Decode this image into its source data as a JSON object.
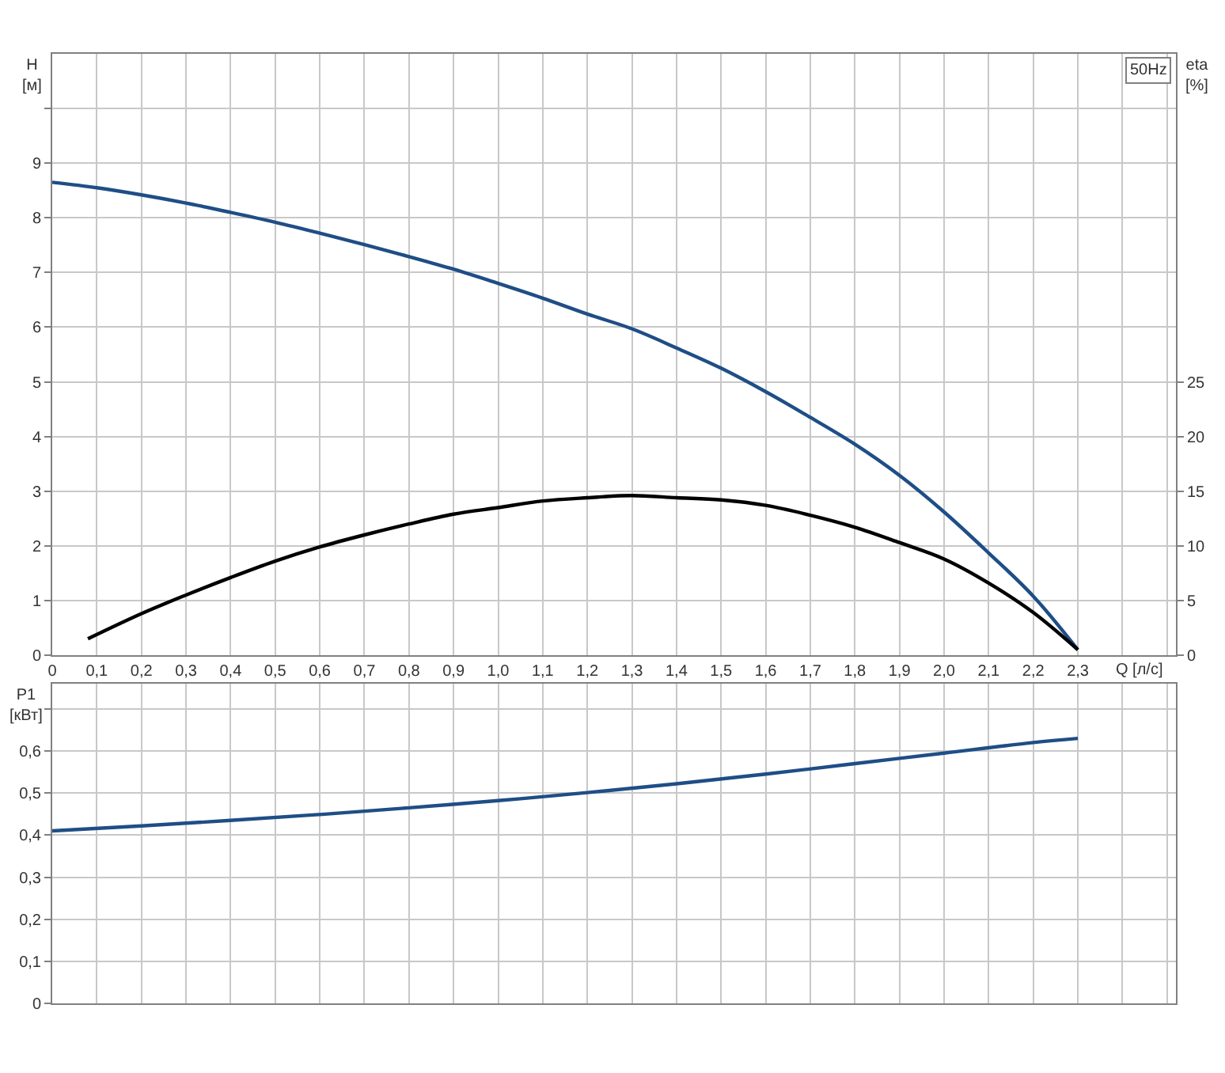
{
  "chart_data": [
    {
      "type": "line",
      "title": "50Hz",
      "xlabel": "Q [л/с]",
      "ylabel": "H\n[м]",
      "y2label": "eta\n[%]",
      "x": [
        0,
        0.1,
        0.2,
        0.3,
        0.4,
        0.5,
        0.6,
        0.7,
        0.8,
        0.9,
        1.0,
        1.1,
        1.2,
        1.3,
        1.4,
        1.5,
        1.6,
        1.7,
        1.8,
        1.9,
        2.0,
        2.1,
        2.2,
        2.3
      ],
      "series": [
        {
          "color": "#1f4e86",
          "values": [
            8.65,
            8.55,
            8.42,
            8.27,
            8.1,
            7.92,
            7.72,
            7.51,
            7.29,
            7.06,
            6.8,
            6.53,
            6.24,
            5.97,
            5.62,
            5.25,
            4.82,
            4.35,
            3.86,
            3.29,
            2.62,
            1.87,
            1.08,
            0.1
          ]
        },
        {
          "color": "#000000",
          "axis": "y2",
          "x": [
            0.08,
            0.2,
            0.3,
            0.4,
            0.5,
            0.6,
            0.7,
            0.8,
            0.9,
            1.0,
            1.1,
            1.2,
            1.3,
            1.4,
            1.5,
            1.6,
            1.7,
            1.8,
            1.9,
            2.0,
            2.1,
            2.2,
            2.3
          ],
          "values": [
            1.5,
            3.8,
            5.5,
            7.1,
            8.6,
            9.9,
            11,
            12,
            12.9,
            13.5,
            14.1,
            14.4,
            14.6,
            14.4,
            14.2,
            13.7,
            12.8,
            11.7,
            10.3,
            8.8,
            6.6,
            3.9,
            0.5
          ]
        }
      ],
      "xlim": [
        0,
        2.52
      ],
      "xticks": [
        0,
        {
          "value": 0.1,
          "label": "0,1"
        },
        {
          "value": 0.2,
          "label": "0,2"
        },
        {
          "value": 0.3,
          "label": "0,3"
        },
        {
          "value": 0.4,
          "label": "0,4"
        },
        {
          "value": 0.5,
          "label": "0,5"
        },
        {
          "value": 0.6,
          "label": "0,6"
        },
        {
          "value": 0.7,
          "label": "0,7"
        },
        {
          "value": 0.8,
          "label": "0,8"
        },
        {
          "value": 0.9,
          "label": "0,9"
        },
        {
          "value": 1.0,
          "label": "1,0"
        },
        {
          "value": 1.1,
          "label": "1,1"
        },
        {
          "value": 1.2,
          "label": "1,2"
        },
        {
          "value": 1.3,
          "label": "1,3"
        },
        {
          "value": 1.4,
          "label": "1,4"
        },
        {
          "value": 1.5,
          "label": "1,5"
        },
        {
          "value": 1.6,
          "label": "1,6"
        },
        {
          "value": 1.7,
          "label": "1,7"
        },
        {
          "value": 1.8,
          "label": "1,8"
        },
        {
          "value": 1.9,
          "label": "1,9"
        },
        {
          "value": 2.0,
          "label": "2,0"
        },
        {
          "value": 2.1,
          "label": "2,1"
        },
        {
          "value": 2.2,
          "label": "2,2"
        },
        {
          "value": 2.3,
          "label": "2,3"
        },
        {
          "value": 2.4,
          "label": null
        },
        {
          "value": 2.5,
          "label": null
        }
      ],
      "ylim": [
        0,
        11
      ],
      "yticks": [
        0,
        1,
        2,
        3,
        4,
        5,
        6,
        7,
        8,
        9,
        {
          "value": 10,
          "label": null
        }
      ],
      "y2lim": [
        0,
        55
      ],
      "y2ticks": [
        0,
        5,
        10,
        15,
        20,
        25
      ],
      "grid": true
    },
    {
      "type": "line",
      "ylabel": "P1\n[кВт]",
      "x": [
        0,
        0.2,
        0.4,
        0.6,
        0.8,
        1.0,
        1.2,
        1.4,
        1.6,
        1.8,
        2.0,
        2.2,
        2.3
      ],
      "series": [
        {
          "color": "#1f4e86",
          "values": [
            0.41,
            0.422,
            0.435,
            0.449,
            0.465,
            0.482,
            0.501,
            0.522,
            0.545,
            0.57,
            0.595,
            0.62,
            0.63
          ]
        }
      ],
      "xlim": [
        0,
        2.52
      ],
      "xticks": [
        0,
        0.1,
        0.2,
        0.3,
        0.4,
        0.5,
        0.6,
        0.7,
        0.8,
        0.9,
        1.0,
        1.1,
        1.2,
        1.3,
        1.4,
        1.5,
        1.6,
        1.7,
        1.8,
        1.9,
        2.0,
        2.1,
        2.2,
        2.3,
        2.4,
        2.5
      ],
      "ylim": [
        0,
        0.76
      ],
      "yticks": [
        0,
        {
          "value": 0.1,
          "label": "0,1"
        },
        {
          "value": 0.2,
          "label": "0,2"
        },
        {
          "value": 0.3,
          "label": "0,3"
        },
        {
          "value": 0.4,
          "label": "0,4"
        },
        {
          "value": 0.5,
          "label": "0,5"
        },
        {
          "value": 0.6,
          "label": "0,6"
        },
        {
          "value": 0.7,
          "label": null
        }
      ],
      "tick_labels": "y",
      "grid": true
    }
  ]
}
